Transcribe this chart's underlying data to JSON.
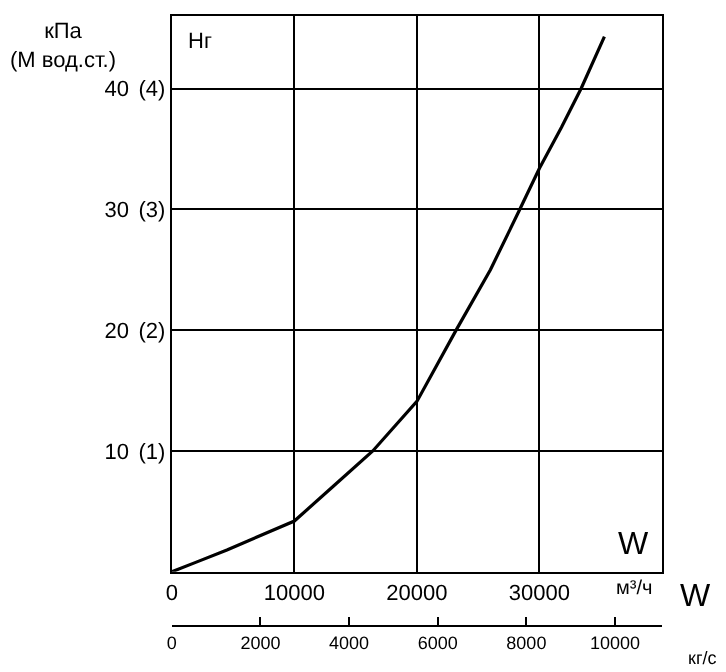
{
  "chart_data": {
    "type": "line",
    "ylabel": "кПа\n(М вод.ст.)",
    "xlabel": "W",
    "x2label": "W",
    "annotations": [
      "Hг",
      "м³/ч",
      "кг/с"
    ],
    "x": [
      0,
      2000,
      4500,
      7000,
      10000,
      13200,
      16400,
      20000,
      23200,
      26000,
      28400,
      30000,
      31800,
      33400,
      35300
    ],
    "series": [
      {
        "color": "#000000",
        "values": [
          0,
          0.8,
          1.8,
          2.9,
          4.2,
          7.1,
          10,
          14.1,
          20,
          25,
          30,
          33.4,
          36.8,
          40,
          44.3
        ]
      }
    ],
    "xlim": [
      0,
      40000
    ],
    "xticks": [
      0,
      10000,
      20000,
      30000
    ],
    "x2lim": [
      0,
      11060
    ],
    "x2ticks": [
      0,
      2000,
      4000,
      6000,
      8000,
      10000
    ],
    "ylim": [
      0,
      46
    ],
    "yticks": [
      10,
      20,
      30,
      40
    ],
    "y2lim": [
      0,
      4.6
    ],
    "y2ticks": [
      {
        "value": 1,
        "label": "(1)"
      },
      {
        "value": 2,
        "label": "(2)"
      },
      {
        "value": 3,
        "label": "(3)"
      },
      {
        "value": 4,
        "label": "(4)"
      }
    ],
    "grid": true,
    "marker": "none",
    "line_style": "solid"
  }
}
